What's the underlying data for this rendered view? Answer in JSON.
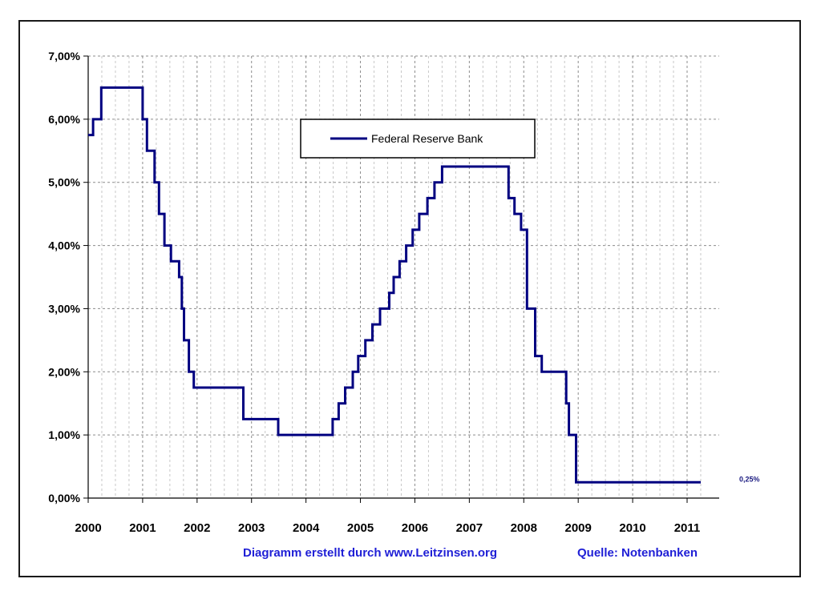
{
  "chart_data": {
    "type": "line",
    "step": true,
    "series": [
      {
        "name": "Federal Reserve Bank",
        "color": "#000080",
        "points": [
          [
            2000.0,
            5.75
          ],
          [
            2000.09,
            5.75
          ],
          [
            2000.09,
            6.0
          ],
          [
            2000.24,
            6.0
          ],
          [
            2000.24,
            6.5
          ],
          [
            2001.0,
            6.5
          ],
          [
            2001.0,
            6.0
          ],
          [
            2001.08,
            6.0
          ],
          [
            2001.08,
            5.5
          ],
          [
            2001.22,
            5.5
          ],
          [
            2001.22,
            5.0
          ],
          [
            2001.3,
            5.0
          ],
          [
            2001.3,
            4.5
          ],
          [
            2001.4,
            4.5
          ],
          [
            2001.4,
            4.0
          ],
          [
            2001.52,
            4.0
          ],
          [
            2001.52,
            3.75
          ],
          [
            2001.67,
            3.75
          ],
          [
            2001.67,
            3.5
          ],
          [
            2001.72,
            3.5
          ],
          [
            2001.72,
            3.0
          ],
          [
            2001.76,
            3.0
          ],
          [
            2001.76,
            2.5
          ],
          [
            2001.85,
            2.5
          ],
          [
            2001.85,
            2.0
          ],
          [
            2001.94,
            2.0
          ],
          [
            2001.94,
            1.75
          ],
          [
            2002.85,
            1.75
          ],
          [
            2002.85,
            1.25
          ],
          [
            2003.49,
            1.25
          ],
          [
            2003.49,
            1.0
          ],
          [
            2004.49,
            1.0
          ],
          [
            2004.49,
            1.25
          ],
          [
            2004.6,
            1.25
          ],
          [
            2004.6,
            1.5
          ],
          [
            2004.72,
            1.5
          ],
          [
            2004.72,
            1.75
          ],
          [
            2004.86,
            1.75
          ],
          [
            2004.86,
            2.0
          ],
          [
            2004.96,
            2.0
          ],
          [
            2004.96,
            2.25
          ],
          [
            2005.09,
            2.25
          ],
          [
            2005.09,
            2.5
          ],
          [
            2005.22,
            2.5
          ],
          [
            2005.22,
            2.75
          ],
          [
            2005.36,
            2.75
          ],
          [
            2005.36,
            3.0
          ],
          [
            2005.53,
            3.0
          ],
          [
            2005.53,
            3.25
          ],
          [
            2005.61,
            3.25
          ],
          [
            2005.61,
            3.5
          ],
          [
            2005.72,
            3.5
          ],
          [
            2005.72,
            3.75
          ],
          [
            2005.84,
            3.75
          ],
          [
            2005.84,
            4.0
          ],
          [
            2005.96,
            4.0
          ],
          [
            2005.96,
            4.25
          ],
          [
            2006.08,
            4.25
          ],
          [
            2006.08,
            4.5
          ],
          [
            2006.23,
            4.5
          ],
          [
            2006.23,
            4.75
          ],
          [
            2006.36,
            4.75
          ],
          [
            2006.36,
            5.0
          ],
          [
            2006.5,
            5.0
          ],
          [
            2006.5,
            5.25
          ],
          [
            2007.72,
            5.25
          ],
          [
            2007.72,
            4.75
          ],
          [
            2007.83,
            4.75
          ],
          [
            2007.83,
            4.5
          ],
          [
            2007.95,
            4.5
          ],
          [
            2007.95,
            4.25
          ],
          [
            2008.06,
            4.25
          ],
          [
            2008.06,
            3.0
          ],
          [
            2008.21,
            3.0
          ],
          [
            2008.21,
            2.25
          ],
          [
            2008.33,
            2.25
          ],
          [
            2008.33,
            2.0
          ],
          [
            2008.78,
            2.0
          ],
          [
            2008.78,
            1.5
          ],
          [
            2008.83,
            1.5
          ],
          [
            2008.83,
            1.0
          ],
          [
            2008.96,
            1.0
          ],
          [
            2008.96,
            0.25
          ],
          [
            2011.25,
            0.25
          ]
        ]
      }
    ],
    "x_ticks": [
      "2000",
      "2001",
      "2002",
      "2003",
      "2004",
      "2005",
      "2006",
      "2007",
      "2008",
      "2009",
      "2010",
      "2011"
    ],
    "x_tick_values": [
      2000,
      2001,
      2002,
      2003,
      2004,
      2005,
      2006,
      2007,
      2008,
      2009,
      2010,
      2011
    ],
    "y_ticks": [
      "0,00%",
      "1,00%",
      "2,00%",
      "3,00%",
      "4,00%",
      "5,00%",
      "6,00%",
      "7,00%"
    ],
    "y_tick_values": [
      0,
      1,
      2,
      3,
      4,
      5,
      6,
      7
    ],
    "xlim": [
      2000,
      2011.25
    ],
    "ylim": [
      0,
      7
    ],
    "grid": true,
    "legend": "top-center",
    "end_label": "0,25%",
    "footer_left": "Diagramm erstellt durch www.Leitzinsen.org",
    "footer_right": "Quelle: Notenbanken"
  }
}
